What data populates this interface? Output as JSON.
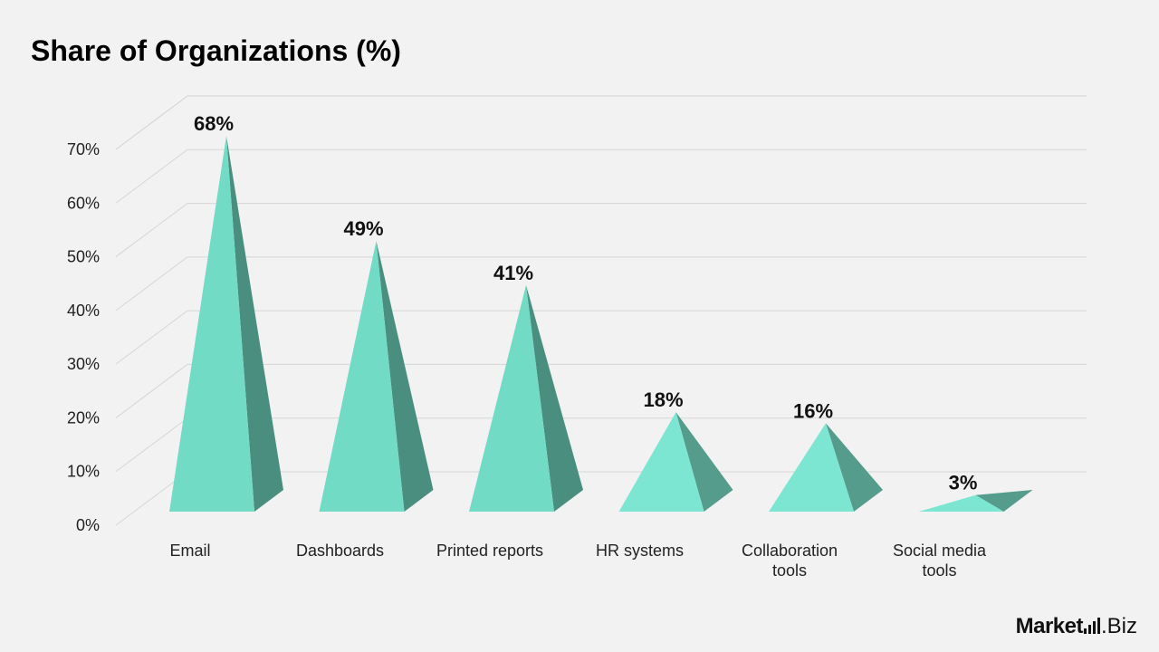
{
  "title": "Share of Organizations (%)",
  "brand": {
    "name": "Market",
    "suffix": ".Biz"
  },
  "colors": {
    "front": "#72dbc5",
    "side": "#4a8e7f",
    "front_alt": "#7de6d2",
    "side_alt": "#559c8c",
    "grid": "#d6d6d6",
    "background": "#f2f2f2"
  },
  "chart_data": {
    "type": "bar",
    "bar_shape": "3d-pyramid",
    "categories": [
      "Email",
      "Dashboards",
      "Printed reports",
      "HR systems",
      "Collaboration tools",
      "Social media tools"
    ],
    "category_lines": [
      [
        "Email"
      ],
      [
        "Dashboards"
      ],
      [
        "Printed reports"
      ],
      [
        "HR systems"
      ],
      [
        "Collaboration",
        "tools"
      ],
      [
        "Social media",
        "tools"
      ]
    ],
    "values": [
      68,
      49,
      41,
      18,
      16,
      3
    ],
    "data_labels": [
      "68%",
      "49%",
      "41%",
      "18%",
      "16%",
      "3%"
    ],
    "ylim": [
      0,
      70
    ],
    "yticks": [
      0,
      10,
      20,
      30,
      40,
      50,
      60,
      70
    ],
    "ytick_labels": [
      "0%",
      "10%",
      "20%",
      "30%",
      "40%",
      "50%",
      "60%",
      "70%"
    ],
    "grid": true,
    "legend": "none"
  }
}
